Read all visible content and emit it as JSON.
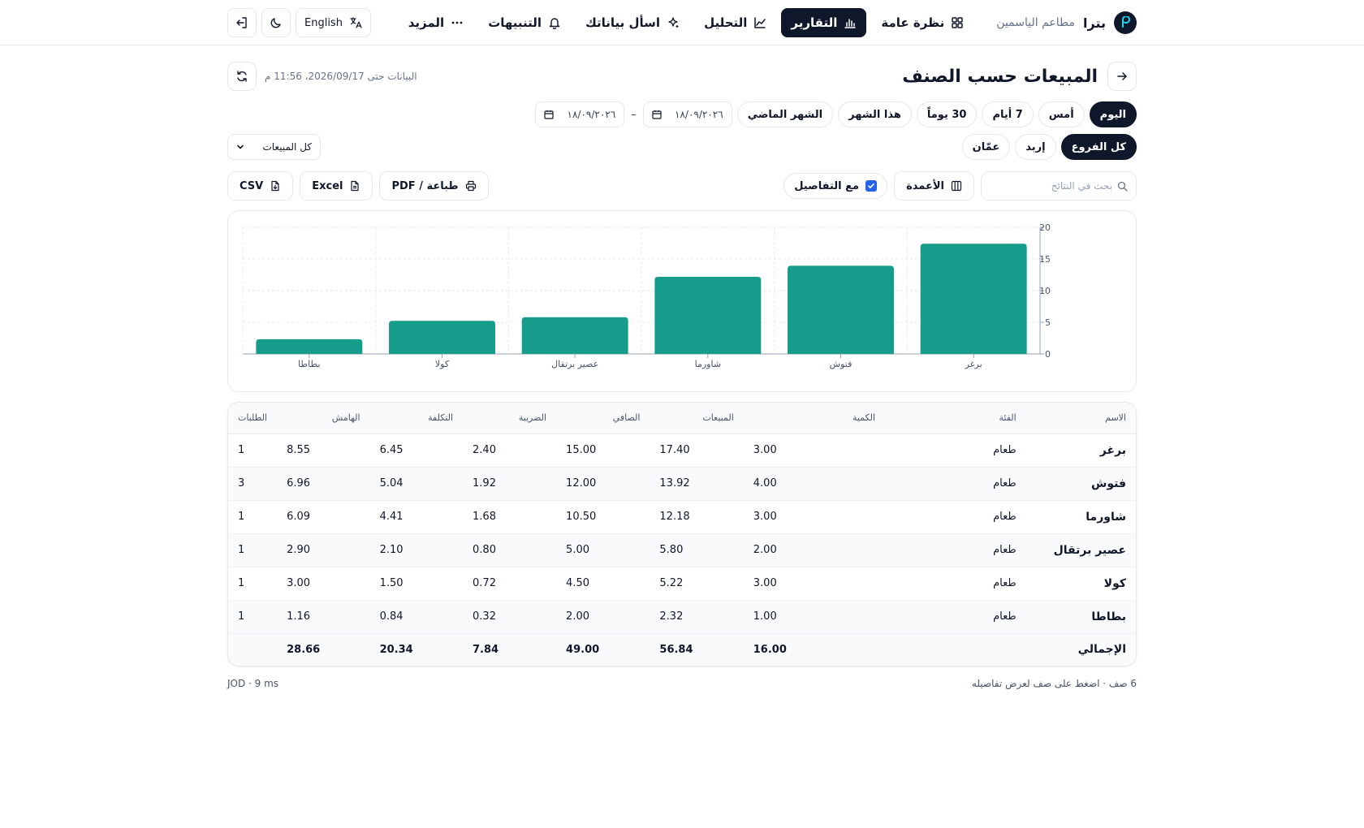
{
  "brand": {
    "name": "بترا",
    "restaurant": "مطاعم الياسمين"
  },
  "nav": {
    "overview": "نظرة عامة",
    "reports": "التقارير",
    "analysis": "التحليل",
    "ask_data": "اسأل بياناتك",
    "alerts": "التنبيهات",
    "more": "المزيد"
  },
  "top_actions": {
    "language": "English",
    "icons": [
      "logout-icon",
      "moon-icon",
      "translate-icon"
    ]
  },
  "page": {
    "title": "المبيعات حسب الصنف",
    "data_as_of": "البيانات حتى 2026/09/17، 11:56 م"
  },
  "periods": [
    "اليوم",
    "أمس",
    "7 أيام",
    "30 يوماً",
    "هذا الشهر",
    "الشهر الماضي"
  ],
  "active_period": "اليوم",
  "date_range": {
    "from": "١٨/٠٩/٢٠٢٦",
    "to": "١٨/٠٩/٢٠٢٦",
    "separator": "–"
  },
  "branches": [
    "كل الفروع",
    "إربد",
    "عمّان"
  ],
  "active_branch": "كل الفروع",
  "sales_filter": {
    "selected": "كل المبيعات"
  },
  "toolbar": {
    "search_placeholder": "بحث في النتائج",
    "columns": "الأعمدة",
    "with_details": "مع التفاصيل",
    "with_details_checked": true,
    "print_pdf": "طباعة / PDF",
    "excel": "Excel",
    "csv": "CSV"
  },
  "chart_data": {
    "type": "bar",
    "categories": [
      "برغر",
      "فتوش",
      "شاورما",
      "عصير برتقال",
      "كولا",
      "بطاطا"
    ],
    "values": [
      17.4,
      13.92,
      12.18,
      5.8,
      5.22,
      2.32
    ],
    "ylim": [
      0,
      20
    ],
    "yticks": [
      0,
      5,
      10,
      15,
      20
    ],
    "bar_color": "#159c8a",
    "grid": true
  },
  "table": {
    "headers": [
      "الاسم",
      "الفئة",
      "الكمية",
      "المبيعات",
      "الصافي",
      "الضريبة",
      "التكلفة",
      "الهامش",
      "الطلبات"
    ],
    "rows": [
      [
        "برغر",
        "طعام",
        "3.00",
        "17.40",
        "15.00",
        "2.40",
        "6.45",
        "8.55",
        "1"
      ],
      [
        "فتوش",
        "طعام",
        "4.00",
        "13.92",
        "12.00",
        "1.92",
        "5.04",
        "6.96",
        "3"
      ],
      [
        "شاورما",
        "طعام",
        "3.00",
        "12.18",
        "10.50",
        "1.68",
        "4.41",
        "6.09",
        "1"
      ],
      [
        "عصير برتقال",
        "طعام",
        "2.00",
        "5.80",
        "5.00",
        "0.80",
        "2.10",
        "2.90",
        "1"
      ],
      [
        "كولا",
        "طعام",
        "3.00",
        "5.22",
        "4.50",
        "0.72",
        "1.50",
        "3.00",
        "1"
      ],
      [
        "بطاطا",
        "طعام",
        "1.00",
        "2.32",
        "2.00",
        "0.32",
        "0.84",
        "1.16",
        "1"
      ]
    ],
    "total": [
      "الإجمالي",
      "",
      "16.00",
      "56.84",
      "49.00",
      "7.84",
      "20.34",
      "28.66",
      ""
    ]
  },
  "footer": {
    "rows_hint": "6 صف · اضغط على صف لعرض تفاصيله",
    "meta": "JOD · 9 ms"
  },
  "colors": {
    "dark": "#0f172a",
    "accent": "#159c8a",
    "checkbox": "#2563eb"
  }
}
